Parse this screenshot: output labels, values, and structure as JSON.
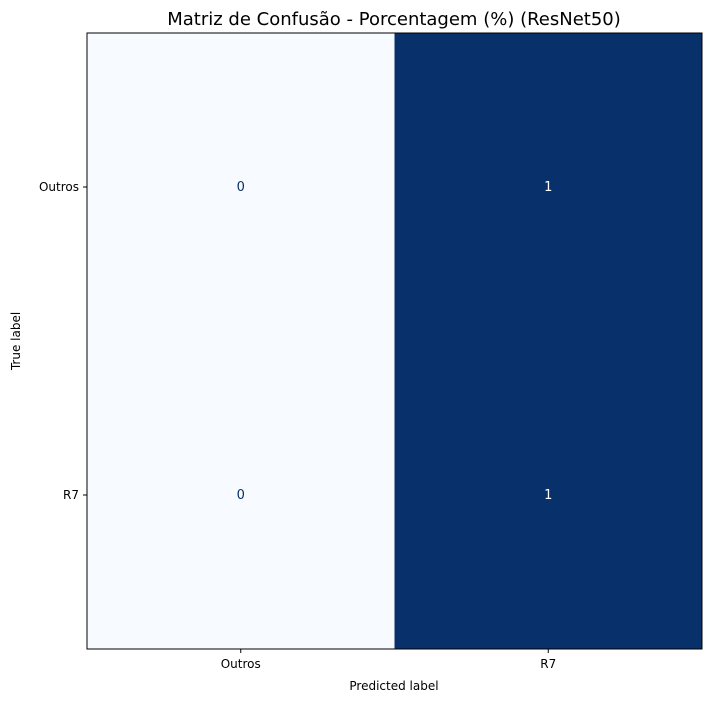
{
  "chart_data": {
    "type": "heatmap",
    "title": "Matriz de Confusão - Porcentagem (%) (ResNet50)",
    "xlabel": "Predicted label",
    "ylabel": "True label",
    "x_categories": [
      "Outros",
      "R7"
    ],
    "y_categories": [
      "Outros",
      "R7"
    ],
    "values": [
      [
        0,
        1
      ],
      [
        0,
        1
      ]
    ],
    "value_labels": [
      [
        "0",
        "1"
      ],
      [
        "0",
        "1"
      ]
    ],
    "colormap": "Blues",
    "vmin": 0,
    "vmax": 1,
    "colors": {
      "low": "#f7fbff",
      "high": "#08306b",
      "text_on_light": "#08306b",
      "text_on_dark": "#ffffff"
    },
    "grid": false,
    "colorbar": false
  }
}
